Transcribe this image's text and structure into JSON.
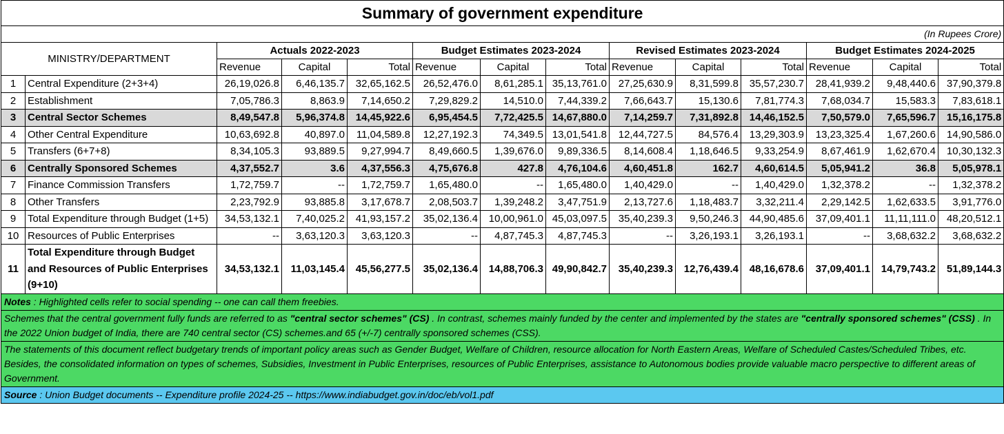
{
  "title": "Summary of government expenditure",
  "unit": "(In  Rupees Crore)",
  "header": {
    "first": "MINISTRY/DEPARTMENT",
    "groups": [
      "Actuals 2022-2023",
      "Budget Estimates 2023-2024",
      "Revised Estimates 2023-2024",
      "Budget Estimates 2024-2025"
    ],
    "sub": [
      "Revenue",
      "Capital",
      "Total"
    ]
  },
  "highlight_color": "#d9d9d9",
  "rows": [
    {
      "no": 1,
      "label": "Central Expenditure (2+3+4)",
      "cells": [
        "26,19,026.8",
        "6,46,135.7",
        "32,65,162.5",
        "26,52,476.0",
        "8,61,285.1",
        "35,13,761.0",
        "27,25,630.9",
        "8,31,599.8",
        "35,57,230.7",
        "28,41,939.2",
        "9,48,440.6",
        "37,90,379.8"
      ]
    },
    {
      "no": 2,
      "label": "Establishment",
      "cells": [
        "7,05,786.3",
        "8,863.9",
        "7,14,650.2",
        "7,29,829.2",
        "14,510.0",
        "7,44,339.2",
        "7,66,643.7",
        "15,130.6",
        "7,81,774.3",
        "7,68,034.7",
        "15,583.3",
        "7,83,618.1"
      ]
    },
    {
      "no": 3,
      "label": "Central Sector Schemes",
      "bold": true,
      "highlight": true,
      "cells": [
        "8,49,547.8",
        "5,96,374.8",
        "14,45,922.6",
        "6,95,454.5",
        "7,72,425.5",
        "14,67,880.0",
        "7,14,259.7",
        "7,31,892.8",
        "14,46,152.5",
        "7,50,579.0",
        "7,65,596.7",
        "15,16,175.8"
      ]
    },
    {
      "no": 4,
      "label": "Other Central Expenditure",
      "cells": [
        "10,63,692.8",
        "40,897.0",
        "11,04,589.8",
        "12,27,192.3",
        "74,349.5",
        "13,01,541.8",
        "12,44,727.5",
        "84,576.4",
        "13,29,303.9",
        "13,23,325.4",
        "1,67,260.6",
        "14,90,586.0"
      ]
    },
    {
      "no": 5,
      "label": "Transfers (6+7+8)",
      "cells": [
        "8,34,105.3",
        "93,889.5",
        "9,27,994.7",
        "8,49,660.5",
        "1,39,676.0",
        "9,89,336.5",
        "8,14,608.4",
        "1,18,646.5",
        "9,33,254.9",
        "8,67,461.9",
        "1,62,670.4",
        "10,30,132.3"
      ]
    },
    {
      "no": 6,
      "label": "Centrally Sponsored Schemes",
      "bold": true,
      "highlight": true,
      "cells": [
        "4,37,552.7",
        "3.6",
        "4,37,556.3",
        "4,75,676.8",
        "427.8",
        "4,76,104.6",
        "4,60,451.8",
        "162.7",
        "4,60,614.5",
        "5,05,941.2",
        "36.8",
        "5,05,978.1"
      ]
    },
    {
      "no": 7,
      "label": "Finance Commission Transfers",
      "cells": [
        "1,72,759.7",
        "--",
        "1,72,759.7",
        "1,65,480.0",
        "--",
        "1,65,480.0",
        "1,40,429.0",
        "--",
        "1,40,429.0",
        "1,32,378.2",
        "--",
        "1,32,378.2"
      ]
    },
    {
      "no": 8,
      "label": "Other Transfers",
      "cells": [
        "2,23,792.9",
        "93,885.8",
        "3,17,678.7",
        "2,08,503.7",
        "1,39,248.2",
        "3,47,751.9",
        "2,13,727.6",
        "1,18,483.7",
        "3,32,211.4",
        "2,29,142.5",
        "1,62,633.5",
        "3,91,776.0"
      ]
    },
    {
      "no": 9,
      "label": "Total Expenditure through Budget (1+5)",
      "cells": [
        "34,53,132.1",
        "7,40,025.2",
        "41,93,157.2",
        "35,02,136.4",
        "10,00,961.0",
        "45,03,097.5",
        "35,40,239.3",
        "9,50,246.3",
        "44,90,485.6",
        "37,09,401.1",
        "11,11,111.0",
        "48,20,512.1"
      ]
    },
    {
      "no": 10,
      "label": "Resources of Public Enterprises",
      "cells": [
        "--",
        "3,63,120.3",
        "3,63,120.3",
        "--",
        "4,87,745.3",
        "4,87,745.3",
        "--",
        "3,26,193.1",
        "3,26,193.1",
        "--",
        "3,68,632.2",
        "3,68,632.2"
      ]
    },
    {
      "no": 11,
      "label": "Total Expenditure through Budget and Resources of Public Enterprises (9+10)",
      "bold": true,
      "cells": [
        "34,53,132.1",
        "11,03,145.4",
        "45,56,277.5",
        "35,02,136.4",
        "14,88,706.3",
        "49,90,842.7",
        "35,40,239.3",
        "12,76,439.4",
        "48,16,678.6",
        "37,09,401.1",
        "14,79,743.2",
        "51,89,144.3"
      ]
    }
  ],
  "notes": [
    {
      "color": "#4cd964",
      "parts": [
        {
          "text": "Notes",
          "bold": true
        },
        {
          "text": " : Highlighted cells refer to social spending -- one can call them freebies."
        }
      ]
    },
    {
      "color": "#4cd964",
      "parts": [
        {
          "text": "Schemes that the central government fully funds are referred to as  "
        },
        {
          "text": "\"central sector schemes\" (CS)",
          "bold": true
        },
        {
          "text": " . In contrast, schemes mainly funded by the center and implemented by the states are  "
        },
        {
          "text": "\"centrally sponsored schemes\" (CSS)",
          "bold": true
        },
        {
          "text": " . In the 2022 Union budget of India, there are 740 central sector (CS) schemes.and 65 (+/-7) centrally sponsored schemes (CSS)."
        }
      ]
    },
    {
      "color": "#4cd964",
      "parts": [
        {
          "text": "The statements of this document reflect budgetary trends of important policy areas such as  Gender Budget, Welfare of Children, resource allocation for North Eastern Areas, Welfare of  Scheduled Castes/Scheduled Tribes, etc. Besides, the consolidated information on types of  schemes, Subsidies, Investment in Public Enterprises, resources of Public Enterprises, assistance to Autonomous bodies provide valuable macro perspective to different areas of Government."
        }
      ]
    },
    {
      "color": "#5bc8f0",
      "parts": [
        {
          "text": "Source",
          "bold": true
        },
        {
          "text": " : Union Budget documents -- Expenditure profile 2024-25 -- https://www.indiabudget.gov.in/doc/eb/vol1.pdf"
        }
      ]
    }
  ]
}
